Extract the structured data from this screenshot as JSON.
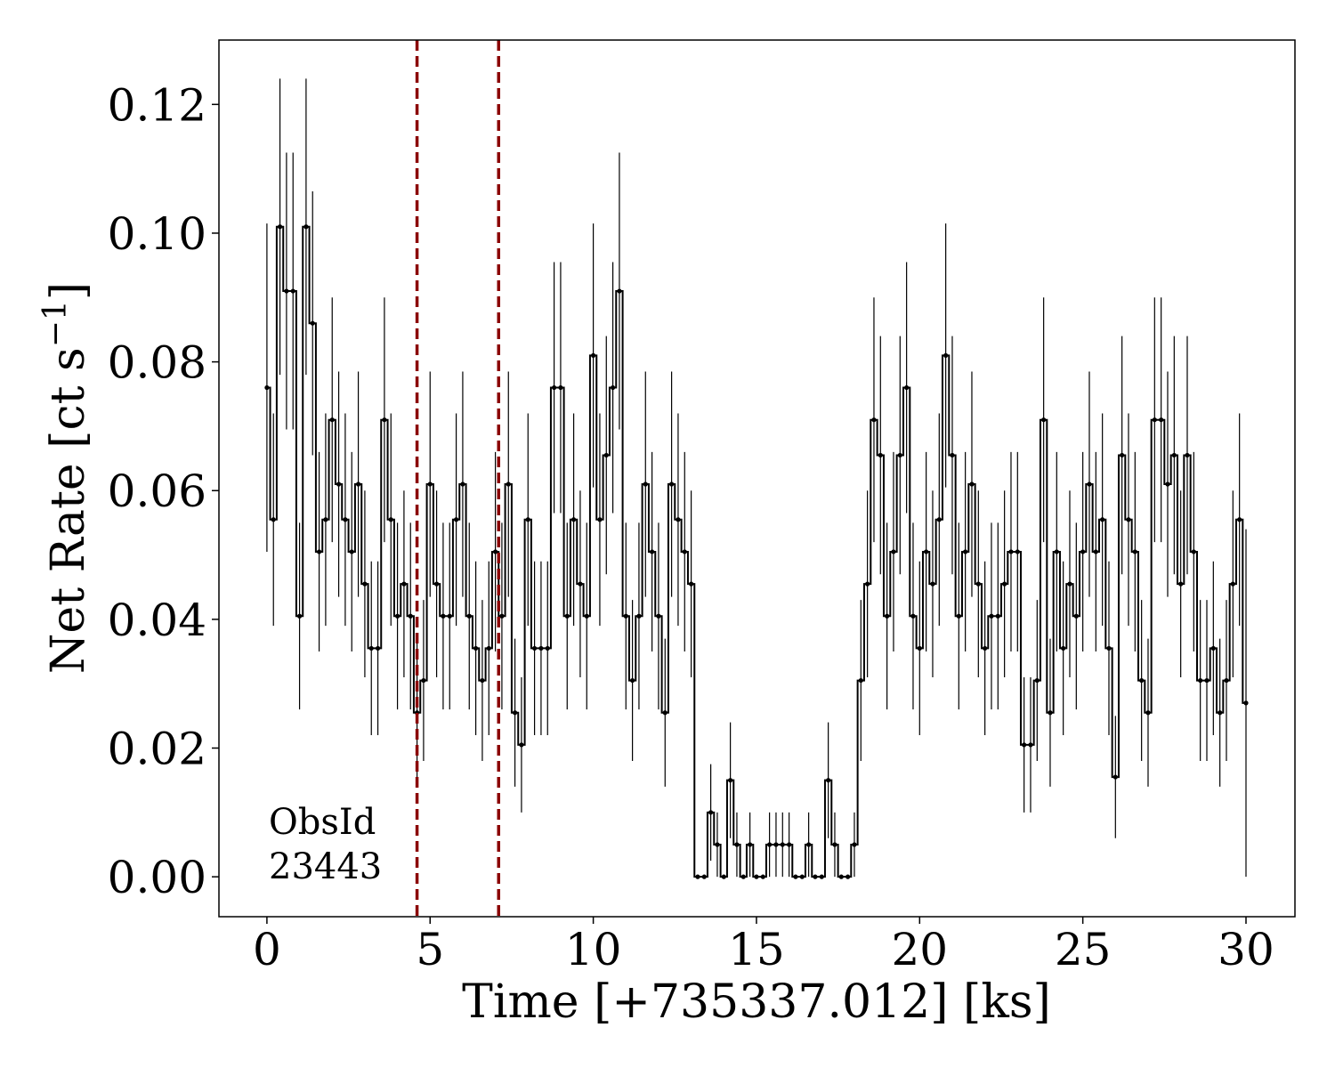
{
  "chart_data": {
    "type": "line",
    "step": "mid",
    "xlabel": "Time [+735337.012] [ks]",
    "ylabel_main": "Net Rate [ct s",
    "ylabel_sup": "−1",
    "ylabel_close": "]",
    "xlim": [
      -1.47,
      31.5
    ],
    "ylim": [
      -0.0062,
      0.13
    ],
    "xticks": [
      0,
      5,
      10,
      15,
      20,
      25,
      30
    ],
    "xtick_labels": [
      "0",
      "5",
      "10",
      "15",
      "20",
      "25",
      "30"
    ],
    "yticks": [
      0.0,
      0.02,
      0.04,
      0.06,
      0.08,
      0.1,
      0.12
    ],
    "ytick_labels": [
      "0.00",
      "0.02",
      "0.04",
      "0.06",
      "0.08",
      "0.10",
      "0.12"
    ],
    "grid": false,
    "annotation": [
      "ObsId",
      "23443"
    ],
    "vlines": [
      4.6,
      7.1
    ],
    "vline_color": "#8b0000",
    "series_color": "#000000",
    "x": [
      0.0,
      0.2,
      0.4,
      0.6,
      0.8,
      1.0,
      1.2,
      1.4,
      1.6,
      1.8,
      2.0,
      2.2,
      2.4,
      2.6,
      2.8,
      3.0,
      3.2,
      3.4,
      3.6,
      3.8,
      4.0,
      4.2,
      4.4,
      4.6,
      4.8,
      5.0,
      5.2,
      5.4,
      5.6,
      5.8,
      6.0,
      6.2,
      6.4,
      6.6,
      6.8,
      7.0,
      7.2,
      7.4,
      7.6,
      7.8,
      8.0,
      8.2,
      8.4,
      8.6,
      8.8,
      9.0,
      9.2,
      9.4,
      9.6,
      9.8,
      10.0,
      10.2,
      10.4,
      10.6,
      10.8,
      11.0,
      11.2,
      11.4,
      11.6,
      11.8,
      12.0,
      12.2,
      12.4,
      12.6,
      12.8,
      13.0,
      13.2,
      13.4,
      13.6,
      13.8,
      14.0,
      14.2,
      14.4,
      14.6,
      14.8,
      15.0,
      15.2,
      15.4,
      15.6,
      15.8,
      16.0,
      16.2,
      16.4,
      16.6,
      16.8,
      17.0,
      17.2,
      17.4,
      17.6,
      17.8,
      18.0,
      18.2,
      18.4,
      18.6,
      18.8,
      19.0,
      19.2,
      19.4,
      19.6,
      19.8,
      20.0,
      20.2,
      20.4,
      20.6,
      20.8,
      21.0,
      21.2,
      21.4,
      21.6,
      21.8,
      22.0,
      22.2,
      22.4,
      22.6,
      22.8,
      23.0,
      23.2,
      23.4,
      23.6,
      23.8,
      24.0,
      24.2,
      24.4,
      24.6,
      24.8,
      25.0,
      25.2,
      25.4,
      25.6,
      25.8,
      26.0,
      26.2,
      26.4,
      26.6,
      26.8,
      27.0,
      27.2,
      27.4,
      27.6,
      27.8,
      28.0,
      28.2,
      28.4,
      28.6,
      28.8,
      29.0,
      29.2,
      29.4,
      29.6,
      29.8,
      30.0
    ],
    "y": [
      0.076,
      0.0555,
      0.101,
      0.091,
      0.091,
      0.0405,
      0.101,
      0.086,
      0.0505,
      0.0555,
      0.071,
      0.061,
      0.0555,
      0.0505,
      0.061,
      0.0455,
      0.0355,
      0.0355,
      0.071,
      0.0555,
      0.0405,
      0.0455,
      0.0405,
      0.0255,
      0.0305,
      0.061,
      0.0455,
      0.0405,
      0.0405,
      0.0555,
      0.061,
      0.0405,
      0.0355,
      0.0305,
      0.0355,
      0.0505,
      0.0405,
      0.061,
      0.0255,
      0.0205,
      0.0555,
      0.0355,
      0.0355,
      0.0355,
      0.076,
      0.076,
      0.0405,
      0.0555,
      0.0455,
      0.0405,
      0.081,
      0.0555,
      0.0655,
      0.076,
      0.091,
      0.0405,
      0.0305,
      0.0405,
      0.061,
      0.0505,
      0.0405,
      0.0255,
      0.061,
      0.0555,
      0.0505,
      0.0455,
      0.0,
      0.0,
      0.01,
      0.005,
      0.0,
      0.015,
      0.005,
      0.0,
      0.005,
      0.0,
      0.0,
      0.005,
      0.005,
      0.005,
      0.005,
      0.0,
      0.0,
      0.005,
      0.0,
      0.0,
      0.015,
      0.005,
      0.0,
      0.0,
      0.005,
      0.0305,
      0.0455,
      0.071,
      0.0655,
      0.0405,
      0.0505,
      0.0655,
      0.076,
      0.0405,
      0.0355,
      0.0505,
      0.0455,
      0.0555,
      0.081,
      0.0655,
      0.0405,
      0.0505,
      0.061,
      0.0455,
      0.0355,
      0.0405,
      0.0405,
      0.0455,
      0.0505,
      0.0505,
      0.0205,
      0.0205,
      0.0305,
      0.071,
      0.0255,
      0.0505,
      0.0355,
      0.0455,
      0.0405,
      0.0505,
      0.061,
      0.0505,
      0.0555,
      0.0355,
      0.0155,
      0.0655,
      0.0555,
      0.0505,
      0.0305,
      0.0255,
      0.071,
      0.071,
      0.061,
      0.0655,
      0.0455,
      0.0655,
      0.0505,
      0.0305,
      0.0305,
      0.0355,
      0.0255,
      0.0305,
      0.0455,
      0.0555,
      0.027
    ],
    "yerr": [
      0.0255,
      0.0165,
      0.023,
      0.0215,
      0.0215,
      0.0145,
      0.023,
      0.0205,
      0.0155,
      0.0165,
      0.019,
      0.0175,
      0.0165,
      0.0155,
      0.0175,
      0.0145,
      0.0135,
      0.0135,
      0.019,
      0.0165,
      0.0145,
      0.0145,
      0.0145,
      0.0115,
      0.0125,
      0.0175,
      0.0145,
      0.0145,
      0.0145,
      0.0165,
      0.0175,
      0.0145,
      0.0135,
      0.0125,
      0.0135,
      0.0155,
      0.0145,
      0.0175,
      0.0115,
      0.0105,
      0.0165,
      0.0135,
      0.0135,
      0.0135,
      0.0195,
      0.0195,
      0.0145,
      0.0165,
      0.0145,
      0.0145,
      0.0205,
      0.0165,
      0.0185,
      0.0195,
      0.0215,
      0.0145,
      0.0125,
      0.0145,
      0.0175,
      0.0155,
      0.0145,
      0.0115,
      0.0175,
      0.0165,
      0.0155,
      0.0145,
      0.0,
      0.0,
      0.0075,
      0.005,
      0.0,
      0.009,
      0.005,
      0.0,
      0.005,
      0.0,
      0.0,
      0.005,
      0.005,
      0.005,
      0.005,
      0.0,
      0.0,
      0.005,
      0.0,
      0.0,
      0.009,
      0.005,
      0.0,
      0.0,
      0.005,
      0.0125,
      0.0145,
      0.019,
      0.0185,
      0.0145,
      0.0155,
      0.0185,
      0.0195,
      0.0145,
      0.0135,
      0.0155,
      0.0145,
      0.0165,
      0.0205,
      0.0185,
      0.0145,
      0.0155,
      0.0175,
      0.0145,
      0.0135,
      0.0145,
      0.0145,
      0.0145,
      0.0155,
      0.0155,
      0.0105,
      0.0105,
      0.0125,
      0.019,
      0.0115,
      0.0155,
      0.0135,
      0.0145,
      0.0145,
      0.0155,
      0.0175,
      0.0155,
      0.0165,
      0.0135,
      0.0095,
      0.0185,
      0.0165,
      0.0155,
      0.0125,
      0.0115,
      0.019,
      0.019,
      0.0175,
      0.0185,
      0.0145,
      0.0185,
      0.0155,
      0.0125,
      0.0125,
      0.0135,
      0.0115,
      0.0125,
      0.0145,
      0.0165,
      0.027
    ]
  }
}
